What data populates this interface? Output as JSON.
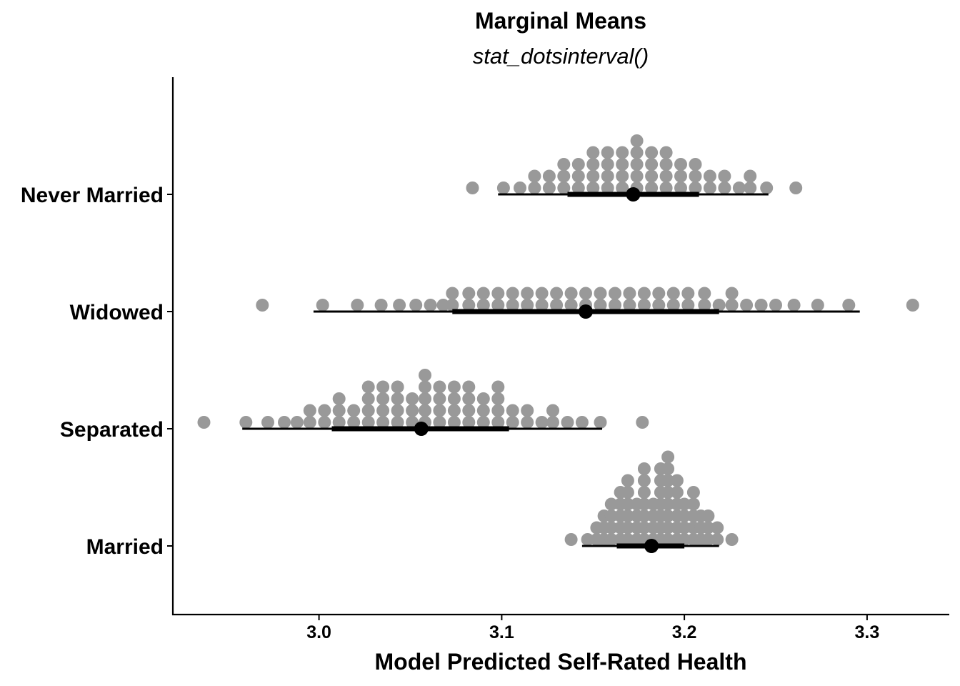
{
  "chart_data": {
    "type": "dotsinterval",
    "title": "Marginal Means",
    "subtitle": "stat_dotsinterval()",
    "xlabel": "Model Predicted Self-Rated Health",
    "ylabel": "",
    "xlim": [
      2.92,
      3.345
    ],
    "xticks": [
      "3.0",
      "3.1",
      "3.2",
      "3.3"
    ],
    "xtick_values": [
      3.0,
      3.1,
      3.2,
      3.3
    ],
    "categories": [
      "Never Married",
      "Widowed",
      "Separated",
      "Married"
    ],
    "dot_color": "#999999",
    "interval_color": "#000000",
    "series": [
      {
        "category": "Never Married",
        "median": 3.172,
        "interval_66": [
          3.136,
          3.208
        ],
        "interval_95": [
          3.098,
          3.246
        ],
        "dot_columns": [
          [
            3.084,
            1
          ],
          [
            3.101,
            1
          ],
          [
            3.11,
            1
          ],
          [
            3.118,
            2
          ],
          [
            3.126,
            2
          ],
          [
            3.134,
            3
          ],
          [
            3.142,
            3
          ],
          [
            3.15,
            4
          ],
          [
            3.158,
            4
          ],
          [
            3.166,
            4
          ],
          [
            3.174,
            5
          ],
          [
            3.182,
            4
          ],
          [
            3.19,
            4
          ],
          [
            3.198,
            3
          ],
          [
            3.206,
            3
          ],
          [
            3.214,
            2
          ],
          [
            3.222,
            2
          ],
          [
            3.23,
            1
          ],
          [
            3.236,
            2
          ],
          [
            3.245,
            1
          ],
          [
            3.261,
            1
          ]
        ]
      },
      {
        "category": "Widowed",
        "median": 3.146,
        "interval_66": [
          3.073,
          3.219
        ],
        "interval_95": [
          2.997,
          3.296
        ],
        "dot_columns": [
          [
            2.969,
            1
          ],
          [
            3.002,
            1
          ],
          [
            3.021,
            1
          ],
          [
            3.034,
            1
          ],
          [
            3.044,
            1
          ],
          [
            3.053,
            1
          ],
          [
            3.061,
            1
          ],
          [
            3.068,
            1
          ],
          [
            3.073,
            2
          ],
          [
            3.082,
            2
          ],
          [
            3.09,
            2
          ],
          [
            3.098,
            2
          ],
          [
            3.106,
            2
          ],
          [
            3.114,
            2
          ],
          [
            3.122,
            2
          ],
          [
            3.13,
            2
          ],
          [
            3.138,
            2
          ],
          [
            3.146,
            2
          ],
          [
            3.154,
            2
          ],
          [
            3.162,
            2
          ],
          [
            3.17,
            2
          ],
          [
            3.178,
            2
          ],
          [
            3.186,
            2
          ],
          [
            3.194,
            2
          ],
          [
            3.202,
            2
          ],
          [
            3.211,
            2
          ],
          [
            3.219,
            1
          ],
          [
            3.226,
            2
          ],
          [
            3.234,
            1
          ],
          [
            3.242,
            1
          ],
          [
            3.25,
            1
          ],
          [
            3.26,
            1
          ],
          [
            3.273,
            1
          ],
          [
            3.29,
            1
          ],
          [
            3.325,
            1
          ]
        ]
      },
      {
        "category": "Separated",
        "median": 3.056,
        "interval_66": [
          3.007,
          3.104
        ],
        "interval_95": [
          2.958,
          3.155
        ],
        "dot_columns": [
          [
            2.937,
            1
          ],
          [
            2.96,
            1
          ],
          [
            2.972,
            1
          ],
          [
            2.981,
            1
          ],
          [
            2.988,
            1
          ],
          [
            2.995,
            2
          ],
          [
            3.003,
            2
          ],
          [
            3.011,
            3
          ],
          [
            3.019,
            2
          ],
          [
            3.027,
            4
          ],
          [
            3.035,
            4
          ],
          [
            3.043,
            4
          ],
          [
            3.051,
            3
          ],
          [
            3.058,
            5
          ],
          [
            3.066,
            4
          ],
          [
            3.074,
            4
          ],
          [
            3.082,
            4
          ],
          [
            3.09,
            3
          ],
          [
            3.098,
            4
          ],
          [
            3.106,
            2
          ],
          [
            3.114,
            2
          ],
          [
            3.122,
            1
          ],
          [
            3.128,
            2
          ],
          [
            3.136,
            1
          ],
          [
            3.144,
            1
          ],
          [
            3.154,
            1
          ],
          [
            3.177,
            1
          ]
        ]
      },
      {
        "category": "Married",
        "median": 3.182,
        "interval_66": [
          3.163,
          3.2
        ],
        "interval_95": [
          3.144,
          3.219
        ],
        "dot_columns": [
          [
            3.138,
            1
          ],
          [
            3.147,
            1
          ],
          [
            3.152,
            2
          ],
          [
            3.156,
            3
          ],
          [
            3.16,
            4
          ],
          [
            3.165,
            5
          ],
          [
            3.169,
            6
          ],
          [
            3.174,
            4
          ],
          [
            3.178,
            7
          ],
          [
            3.183,
            4
          ],
          [
            3.187,
            7
          ],
          [
            3.191,
            8
          ],
          [
            3.196,
            6
          ],
          [
            3.2,
            4
          ],
          [
            3.205,
            5
          ],
          [
            3.209,
            3
          ],
          [
            3.213,
            3
          ],
          [
            3.218,
            2
          ],
          [
            3.226,
            1
          ]
        ]
      }
    ]
  }
}
